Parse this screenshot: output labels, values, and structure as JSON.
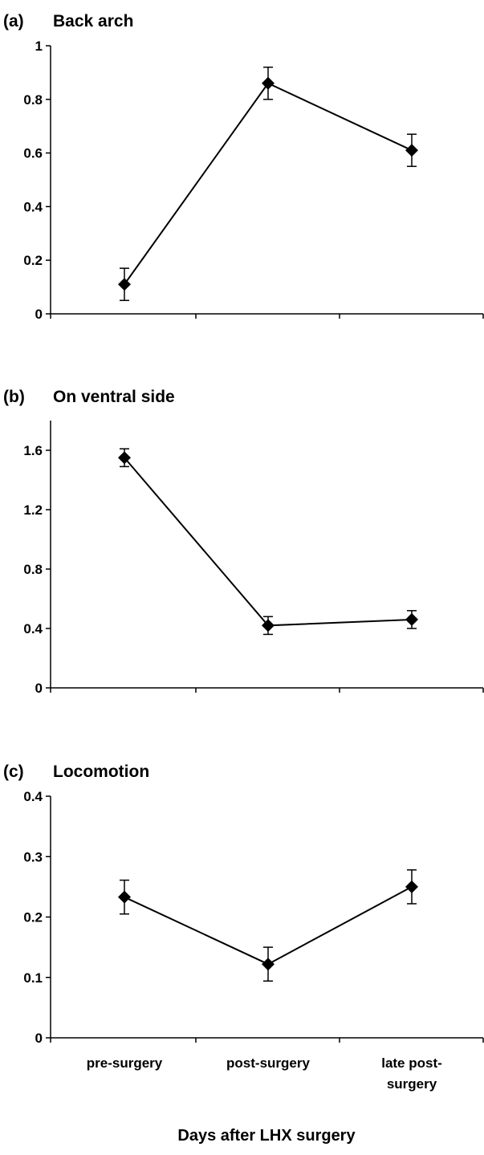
{
  "figure": {
    "xlabel": "Days after LHX surgery",
    "categories": [
      [
        "pre-surgery"
      ],
      [
        "post-surgery"
      ],
      [
        "late post-",
        "surgery"
      ]
    ]
  },
  "chart_data": [
    {
      "type": "line",
      "panel_label": "(a)",
      "title": "Back arch",
      "categories": [
        "pre-surgery",
        "post-surgery",
        "late post-surgery"
      ],
      "values": [
        0.11,
        0.86,
        0.61
      ],
      "error": [
        0.06,
        0.06,
        0.06
      ],
      "ylim": [
        0,
        1
      ],
      "yticks": [
        0,
        0.2,
        0.4,
        0.6,
        0.8,
        1
      ],
      "ytick_labels": [
        "0",
        "0.2",
        "0.4",
        "0.6",
        "0.8",
        "1"
      ],
      "marker": "diamond",
      "color": "#000000",
      "grid": false
    },
    {
      "type": "line",
      "panel_label": "(b)",
      "title": "On ventral side",
      "categories": [
        "pre-surgery",
        "post-surgery",
        "late post-surgery"
      ],
      "values": [
        1.55,
        0.42,
        0.46
      ],
      "error": [
        0.06,
        0.06,
        0.06
      ],
      "ylim": [
        0,
        1.8
      ],
      "yticks": [
        0,
        0.4,
        0.8,
        1.2,
        1.6
      ],
      "ytick_labels": [
        "0",
        "0.4",
        "0.8",
        "1.2",
        "1.6"
      ],
      "marker": "diamond",
      "color": "#000000",
      "grid": false
    },
    {
      "type": "line",
      "panel_label": "(c)",
      "title": "Locomotion",
      "categories": [
        "pre-surgery",
        "post-surgery",
        "late post-surgery"
      ],
      "values": [
        0.233,
        0.122,
        0.25
      ],
      "error": [
        0.028,
        0.028,
        0.028
      ],
      "ylim": [
        0,
        0.4
      ],
      "yticks": [
        0,
        0.1,
        0.2,
        0.3,
        0.4
      ],
      "ytick_labels": [
        "0",
        "0.1",
        "0.2",
        "0.3",
        "0.4"
      ],
      "marker": "diamond",
      "color": "#000000",
      "grid": false
    }
  ]
}
